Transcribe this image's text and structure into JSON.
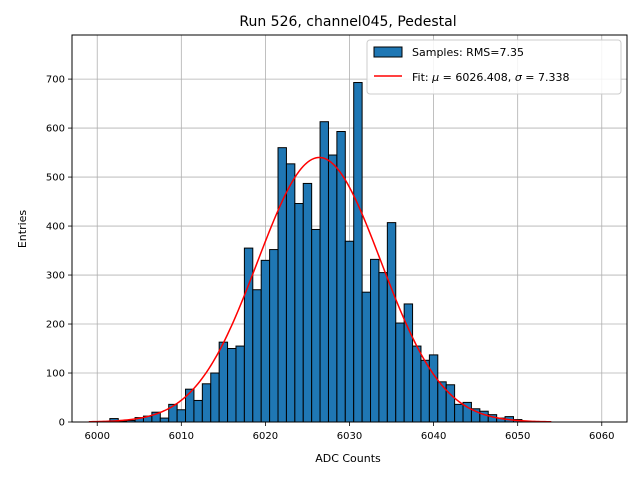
{
  "chart_data": {
    "type": "bar",
    "title": "Run 526, channel045, Pedestal",
    "xlabel": "ADC Counts",
    "ylabel": "Entries",
    "xlim": [
      5997,
      6063
    ],
    "ylim": [
      0,
      790
    ],
    "xticks": [
      6000,
      6010,
      6020,
      6030,
      6040,
      6050,
      6060
    ],
    "yticks": [
      0,
      100,
      200,
      300,
      400,
      500,
      600,
      700
    ],
    "grid": true,
    "legend_position": "top-right",
    "bin_width": 1,
    "histogram": {
      "name": "Samples: RMS=7.35",
      "color": "#1f77b4",
      "edgecolor": "#000000",
      "bin_centers": [
        6001,
        6002,
        6003,
        6004,
        6005,
        6006,
        6007,
        6008,
        6009,
        6010,
        6011,
        6012,
        6013,
        6014,
        6015,
        6016,
        6017,
        6018,
        6019,
        6020,
        6021,
        6022,
        6023,
        6024,
        6025,
        6026,
        6027,
        6028,
        6029,
        6030,
        6031,
        6032,
        6033,
        6034,
        6035,
        6036,
        6037,
        6038,
        6039,
        6040,
        6041,
        6042,
        6043,
        6044,
        6045,
        6046,
        6047,
        6048,
        6049,
        6050,
        6051,
        6052
      ],
      "values": [
        1,
        7,
        2,
        3,
        9,
        12,
        20,
        8,
        36,
        25,
        67,
        44,
        78,
        100,
        163,
        150,
        155,
        355,
        270,
        330,
        352,
        560,
        527,
        446,
        487,
        393,
        613,
        545,
        593,
        369,
        693,
        265,
        332,
        305,
        407,
        202,
        241,
        155,
        126,
        137,
        82,
        76,
        36,
        40,
        27,
        22,
        15,
        8,
        11,
        5,
        2,
        1
      ]
    },
    "fit": {
      "name": "Fit: μ = 6026.408, σ = 7.338",
      "label_parts": [
        "Fit: ",
        "μ",
        " = 6026.408, ",
        "σ",
        " = 7.338"
      ],
      "color": "#ff0000",
      "type": "gaussian",
      "mu": 6026.408,
      "sigma": 7.338,
      "amplitude": 540,
      "x_range": [
        5999,
        6054
      ]
    }
  }
}
